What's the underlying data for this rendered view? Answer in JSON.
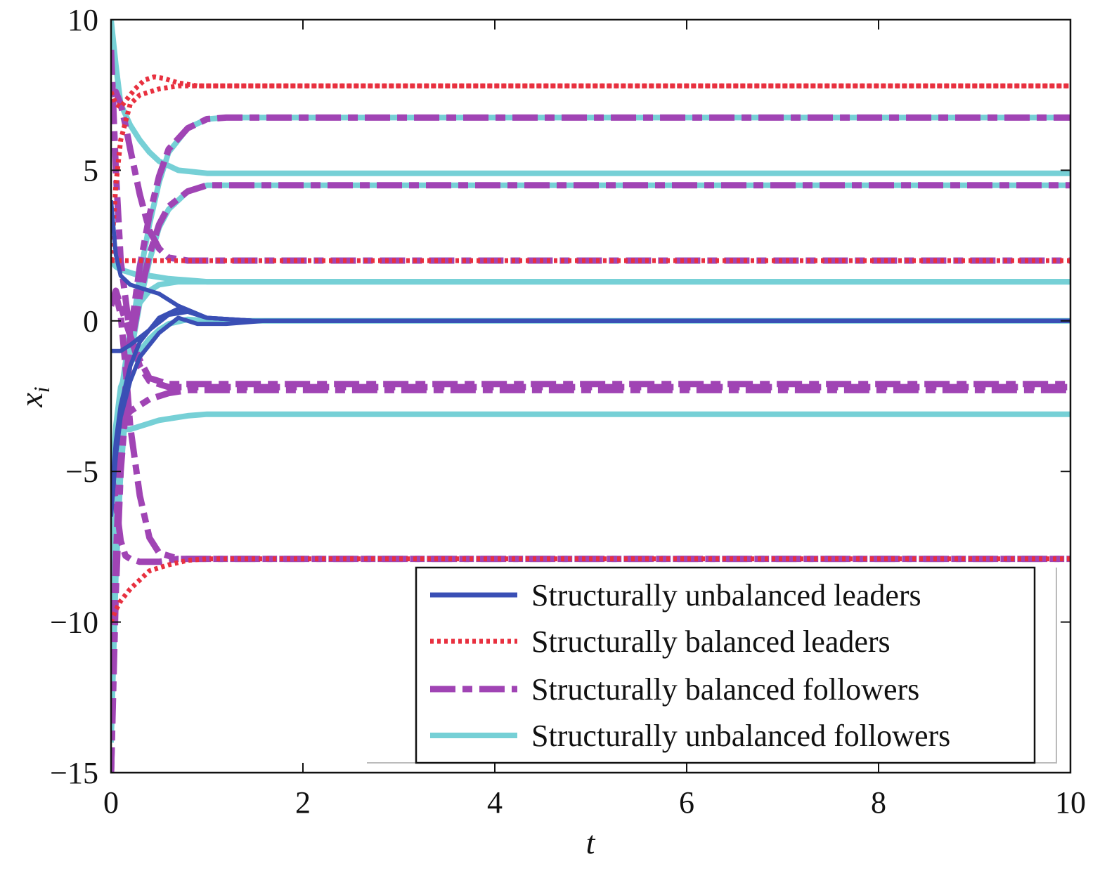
{
  "chart_data": {
    "type": "line",
    "xlabel": "t",
    "ylabel": "x",
    "ylabel_subscript": "i",
    "xlim": [
      0,
      10
    ],
    "ylim": [
      -15,
      10
    ],
    "xticks": [
      0,
      2,
      4,
      6,
      8,
      10
    ],
    "xtick_labels": [
      "0",
      "2",
      "4",
      "6",
      "8",
      "10"
    ],
    "yticks": [
      10,
      5,
      0,
      -5,
      -10,
      -15
    ],
    "ytick_labels": [
      "10",
      "5",
      "0",
      "−5",
      "−10",
      "−15"
    ],
    "grid": false,
    "legend_position": "bottom-right",
    "colors": {
      "structurally_unbalanced_leaders": "#3a4fb5",
      "structurally_balanced_leaders": "#e8303f",
      "structurally_balanced_followers": "#a044b4",
      "structurally_unbalanced_followers": "#76d0d6"
    },
    "series_styles": [
      {
        "name": "Structurally unbalanced leaders",
        "color": "#3a4fb5",
        "line_style": "solid"
      },
      {
        "name": "Structurally balanced leaders",
        "color": "#e8303f",
        "line_style": "dotted"
      },
      {
        "name": "Structurally balanced followers",
        "color": "#a044b4",
        "line_style": "dash-dot"
      },
      {
        "name": "Structurally unbalanced followers",
        "color": "#76d0d6",
        "line_style": "solid"
      }
    ],
    "series": [
      {
        "group": 0,
        "x": [
          0,
          0.05,
          0.1,
          0.2,
          0.3,
          0.5,
          0.7,
          1.0,
          1.5,
          2,
          10
        ],
        "y": [
          4,
          2.2,
          1.5,
          1.2,
          1.1,
          0.9,
          0.5,
          0.1,
          0,
          0,
          0
        ]
      },
      {
        "group": 0,
        "x": [
          0,
          0.05,
          0.1,
          0.2,
          0.3,
          0.5,
          0.7,
          1.0,
          1.5,
          2,
          10
        ],
        "y": [
          -6,
          -4,
          -2.8,
          -1.5,
          -0.7,
          0.1,
          0.4,
          0.1,
          0,
          0,
          0
        ]
      },
      {
        "group": 0,
        "x": [
          0,
          0.05,
          0.1,
          0.2,
          0.3,
          0.5,
          0.7,
          0.9,
          1.2,
          1.6,
          10
        ],
        "y": [
          -6.5,
          -4.5,
          -3.2,
          -2,
          -1.2,
          -0.4,
          0.1,
          -0.1,
          -0.1,
          0,
          0
        ]
      },
      {
        "group": 0,
        "x": [
          0,
          0.1,
          0.2,
          0.4,
          0.6,
          0.8,
          1.0,
          1.5,
          10
        ],
        "y": [
          -1,
          -1,
          -0.8,
          -0.3,
          0.2,
          0.3,
          0.1,
          0,
          0
        ]
      },
      {
        "group": 1,
        "x": [
          0,
          0.05,
          0.1,
          0.15,
          0.25,
          0.35,
          0.45,
          0.55,
          0.7,
          0.9,
          1.2,
          1.5,
          10
        ],
        "y": [
          7.6,
          7.2,
          7.1,
          7.3,
          7.7,
          8.0,
          8.1,
          8.05,
          7.9,
          7.8,
          7.8,
          7.8,
          7.8
        ]
      },
      {
        "group": 1,
        "x": [
          0,
          0.05,
          0.1,
          0.2,
          0.3,
          0.5,
          0.7,
          1.0,
          10
        ],
        "y": [
          2,
          4.5,
          6.0,
          7.2,
          7.5,
          7.7,
          7.8,
          7.8,
          7.8
        ]
      },
      {
        "group": 1,
        "x": [
          0,
          10
        ],
        "y": [
          2,
          2
        ]
      },
      {
        "group": 1,
        "x": [
          0,
          0.05,
          0.1,
          0.2,
          0.3,
          0.4,
          0.6,
          0.8,
          1.0,
          1.3,
          10
        ],
        "y": [
          -10,
          -9.6,
          -9.3,
          -8.9,
          -8.6,
          -8.3,
          -8.1,
          -7.95,
          -7.9,
          -7.9,
          -7.9
        ]
      },
      {
        "group": 2,
        "x": [
          0,
          0.05,
          0.1,
          0.2,
          0.3,
          0.4,
          0.5,
          0.6,
          0.8,
          1.0,
          1.2,
          10
        ],
        "y": [
          -15,
          -8,
          -4,
          -0.5,
          1.8,
          3.5,
          4.8,
          5.7,
          6.4,
          6.7,
          6.75,
          6.75
        ]
      },
      {
        "group": 2,
        "x": [
          0,
          0.05,
          0.1,
          0.2,
          0.3,
          0.4,
          0.5,
          0.6,
          0.8,
          1.0,
          1.2,
          10
        ],
        "y": [
          -15,
          -9,
          -5,
          -1,
          0.8,
          2.2,
          3.2,
          3.8,
          4.3,
          4.5,
          4.5,
          4.5
        ]
      },
      {
        "group": 2,
        "x": [
          0,
          0.05,
          0.1,
          0.15,
          0.2,
          0.3,
          0.4,
          0.5,
          0.6,
          0.8,
          1.0,
          10
        ],
        "y": [
          7.5,
          7.6,
          7.2,
          6.5,
          5.7,
          4.2,
          3.0,
          2.4,
          2.1,
          2.0,
          2.0,
          2.0
        ]
      },
      {
        "group": 2,
        "x": [
          0,
          0.05,
          0.1,
          0.2,
          0.3,
          0.4,
          0.6,
          0.8,
          1.0,
          10
        ],
        "y": [
          9,
          5,
          2,
          -0.5,
          -1.5,
          -2.0,
          -2.2,
          -2.2,
          -2.2,
          -2.2
        ]
      },
      {
        "group": 2,
        "x": [
          0,
          0.05,
          0.1,
          0.2,
          0.3,
          0.4,
          0.6,
          0.8,
          1.0,
          10
        ],
        "y": [
          0.5,
          1.0,
          0.5,
          -0.5,
          -1.3,
          -1.9,
          -2.1,
          -2.1,
          -2.1,
          -2.1
        ]
      },
      {
        "group": 2,
        "x": [
          0,
          0.05,
          0.1,
          0.15,
          0.2,
          0.3,
          0.4,
          0.6,
          0.8,
          1.0,
          10
        ],
        "y": [
          -15,
          -8,
          -4,
          -3.2,
          -3,
          -2.8,
          -2.6,
          -2.4,
          -2.3,
          -2.3,
          -2.3
        ]
      },
      {
        "group": 2,
        "x": [
          0,
          0.05,
          0.1,
          0.15,
          0.2,
          0.3,
          0.4,
          0.5,
          0.7,
          0.9,
          10
        ],
        "y": [
          0.7,
          0.9,
          0.2,
          -1.5,
          -3.5,
          -5.8,
          -7.2,
          -7.7,
          -7.9,
          -7.9,
          -7.9
        ]
      },
      {
        "group": 2,
        "x": [
          0,
          0.05,
          0.1,
          0.15,
          0.2,
          0.3,
          0.4,
          0.5,
          0.7,
          0.9,
          10
        ],
        "y": [
          -5,
          -6,
          -7.3,
          -7.8,
          -7.9,
          -8.0,
          -8.0,
          -8.0,
          -7.9,
          -7.9,
          -7.9
        ]
      },
      {
        "group": 3,
        "x": [
          0,
          0.05,
          0.1,
          0.2,
          0.3,
          0.4,
          0.5,
          0.7,
          1.0,
          1.3,
          10
        ],
        "y": [
          10,
          8.5,
          7.2,
          6.5,
          6.0,
          5.6,
          5.3,
          5.0,
          4.9,
          4.9,
          4.9
        ]
      },
      {
        "group": 3,
        "x": [
          0,
          0.05,
          0.1,
          0.2,
          0.3,
          0.4,
          0.5,
          0.6,
          0.8,
          1.0,
          1.2,
          10
        ],
        "y": [
          -14,
          -8,
          -4.5,
          -0.8,
          1.5,
          3.2,
          4.6,
          5.6,
          6.4,
          6.7,
          6.75,
          6.75
        ]
      },
      {
        "group": 3,
        "x": [
          0,
          0.05,
          0.1,
          0.2,
          0.3,
          0.4,
          0.5,
          0.6,
          0.8,
          1.0,
          1.2,
          10
        ],
        "y": [
          -14,
          -8.5,
          -5,
          -1.2,
          0.6,
          2.0,
          3.1,
          3.7,
          4.3,
          4.5,
          4.5,
          4.5
        ]
      },
      {
        "group": 3,
        "x": [
          0,
          0.05,
          0.1,
          0.2,
          0.3,
          0.4,
          0.5,
          0.7,
          1.0,
          10
        ],
        "y": [
          -13,
          -6,
          -2.5,
          -0.3,
          0.6,
          1.0,
          1.2,
          1.3,
          1.3,
          1.3
        ]
      },
      {
        "group": 3,
        "x": [
          0,
          0.05,
          0.1,
          0.15,
          0.2,
          0.3,
          0.5,
          0.8,
          1.0,
          10
        ],
        "y": [
          -10,
          -5.5,
          -3.8,
          -3.6,
          -3.6,
          -3.5,
          -3.3,
          -3.15,
          -3.1,
          -3.1
        ]
      },
      {
        "group": 3,
        "x": [
          0,
          0.05,
          0.1,
          0.2,
          0.3,
          0.4,
          0.5,
          0.6,
          0.8,
          1.0,
          10
        ],
        "y": [
          -6,
          -3.5,
          -2.2,
          -1.4,
          -1.0,
          -0.6,
          -0.3,
          -0.1,
          0.05,
          0,
          0
        ]
      },
      {
        "group": 3,
        "x": [
          0,
          0.05,
          0.1,
          0.2,
          0.3,
          0.4,
          0.6,
          0.8,
          1.0,
          10
        ],
        "y": [
          2,
          1.8,
          1.7,
          1.6,
          1.5,
          1.5,
          1.4,
          1.35,
          1.3,
          1.3
        ]
      }
    ]
  }
}
